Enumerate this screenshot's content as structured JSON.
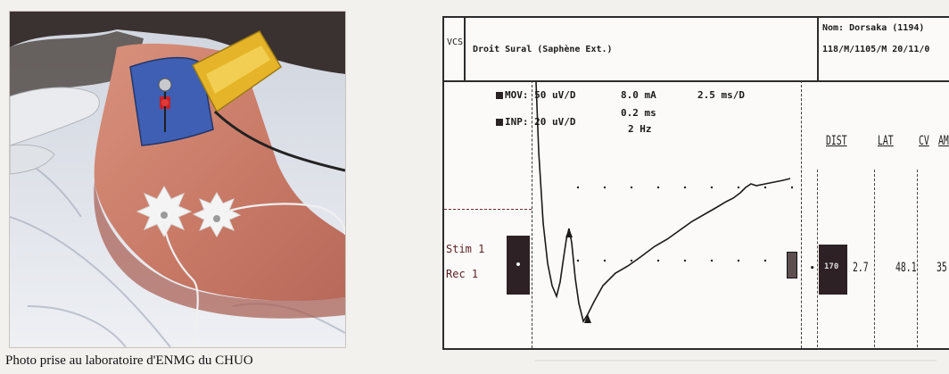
{
  "caption": "Photo prise au laboratoire d'ENMG du CHUO",
  "printout": {
    "mode": "VCS",
    "nerve": "Droit Sural (Saphène Ext.)",
    "patient_line1": "Nom: Dorsaka (1194)",
    "patient_line2": "118/M/1105/M   20/11/0",
    "settings": {
      "mov_label": "MOV:",
      "mov_value": "50 uV/D",
      "inp_label": "INP:",
      "inp_value": "20 uV/D",
      "current": "8.0 mA",
      "duration": "0.2 ms",
      "frequency": "2 Hz",
      "sweep": "2.5 ms/D"
    },
    "stim_lines": [
      "Stim 1",
      "Rec 1"
    ],
    "marker_value": "170",
    "columns": [
      {
        "head": "DIST",
        "value": ""
      },
      {
        "head": "LAT",
        "value": "2.7"
      },
      {
        "head": "CV",
        "value": "48.1"
      },
      {
        "head": "AMP",
        "value": "35"
      }
    ]
  },
  "colors": {
    "print_ink": "#1b1b1b",
    "marker_box": "#2e2125",
    "foot_electrode": "#3e5fb3",
    "foot_clip": "#e6b428"
  }
}
